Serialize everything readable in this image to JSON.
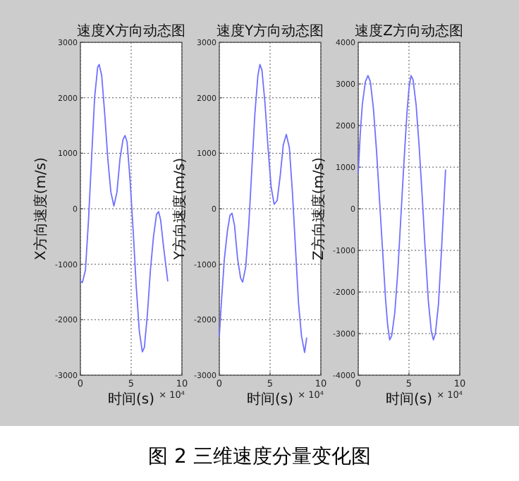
{
  "chart_data": [
    {
      "type": "line",
      "title": "速度X方向动态图",
      "xlabel": "时间(s)",
      "ylabel": "X方向速度(m/s)",
      "annotations": [
        "× 10⁴",
        "图 2  三维速度分量变化图"
      ],
      "xlim": [
        0,
        10
      ],
      "xticks": [
        0,
        5,
        10
      ],
      "ylim": [
        -3000,
        3000
      ],
      "yticks": [
        -3000,
        -2000,
        -1000,
        0,
        1000,
        2000,
        3000
      ],
      "grid": true,
      "line_style": "solid",
      "x": [
        0,
        0.2,
        0.5,
        0.8,
        1.1,
        1.4,
        1.7,
        1.85,
        2.1,
        2.4,
        2.7,
        3.0,
        3.3,
        3.6,
        3.9,
        4.2,
        4.4,
        4.6,
        4.9,
        5.2,
        5.5,
        5.8,
        6.1,
        6.3,
        6.6,
        6.9,
        7.2,
        7.5,
        7.7,
        7.9,
        8.2,
        8.6
      ],
      "series": [
        {
          "color": "#7070ff",
          "values": [
            -1300,
            -1330,
            -1100,
            -200,
            900,
            2000,
            2550,
            2600,
            2400,
            1700,
            900,
            300,
            50,
            300,
            900,
            1250,
            1320,
            1200,
            500,
            -400,
            -1400,
            -2200,
            -2580,
            -2500,
            -1900,
            -1100,
            -500,
            -100,
            -50,
            -200,
            -700,
            -1300
          ]
        }
      ]
    },
    {
      "type": "line",
      "title": "速度Y方向动态图",
      "xlabel": "时间(s)",
      "ylabel": "Y方向速度(m/s)",
      "annotations": [
        "× 10⁴"
      ],
      "xlim": [
        0,
        10
      ],
      "xticks": [
        0,
        5,
        10
      ],
      "ylim": [
        -3000,
        3000
      ],
      "yticks": [
        -3000,
        -2000,
        -1000,
        0,
        1000,
        2000,
        3000
      ],
      "grid": true,
      "line_style": "solid",
      "x": [
        0,
        0.2,
        0.5,
        0.8,
        1.05,
        1.25,
        1.5,
        1.8,
        2.1,
        2.3,
        2.6,
        2.9,
        3.2,
        3.5,
        3.8,
        4.0,
        4.2,
        4.5,
        4.8,
        5.1,
        5.4,
        5.7,
        6.0,
        6.3,
        6.6,
        6.9,
        7.2,
        7.5,
        7.8,
        8.1,
        8.4,
        8.6
      ],
      "series": [
        {
          "color": "#7070ff",
          "values": [
            -2300,
            -1700,
            -900,
            -400,
            -120,
            -80,
            -300,
            -900,
            -1250,
            -1320,
            -1050,
            -300,
            700,
            1700,
            2400,
            2600,
            2500,
            1900,
            1100,
            400,
            80,
            150,
            600,
            1150,
            1340,
            1100,
            300,
            -700,
            -1700,
            -2300,
            -2590,
            -2330
          ]
        }
      ]
    },
    {
      "type": "line",
      "title": "速度Z方向动态图",
      "xlabel": "时间(s)",
      "ylabel": "Z方向速度(m/s)",
      "annotations": [
        "× 10⁴"
      ],
      "xlim": [
        0,
        10
      ],
      "xticks": [
        0,
        5,
        10
      ],
      "ylim": [
        -4000,
        4000
      ],
      "yticks": [
        -4000,
        -3000,
        -2000,
        -1000,
        0,
        1000,
        2000,
        3000,
        4000
      ],
      "grid": true,
      "line_style": "solid",
      "x": [
        0,
        0.2,
        0.4,
        0.7,
        0.96,
        1.2,
        1.5,
        1.8,
        2.1,
        2.4,
        2.7,
        2.9,
        3.1,
        3.3,
        3.6,
        3.9,
        4.2,
        4.5,
        4.8,
        5.0,
        5.2,
        5.4,
        5.7,
        6.0,
        6.3,
        6.6,
        6.9,
        7.2,
        7.4,
        7.6,
        7.9,
        8.2,
        8.6
      ],
      "series": [
        {
          "color": "#7070ff",
          "values": [
            850,
            1800,
            2500,
            3050,
            3200,
            3050,
            2400,
            1400,
            200,
            -1000,
            -2200,
            -2800,
            -3150,
            -3050,
            -2500,
            -1500,
            -200,
            1100,
            2300,
            2900,
            3200,
            3100,
            2500,
            1500,
            300,
            -1000,
            -2200,
            -2950,
            -3150,
            -3000,
            -2300,
            -1000,
            930
          ]
        }
      ]
    }
  ]
}
